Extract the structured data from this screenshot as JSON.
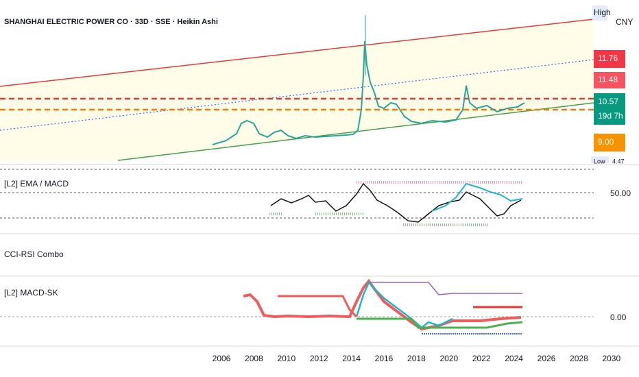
{
  "header": {
    "title": "SHANGHAI ELECTRIC POWER CO · 33D · SSE · Heikin Ashi"
  },
  "price_axis": {
    "high": "High",
    "currency": "CNY",
    "labels": [
      "11.76",
      "11.48",
      "10.57",
      "19d 7h",
      "9.00"
    ],
    "low": "Low",
    "low_value": "4.47"
  },
  "panes": [
    {
      "label": "[L2] EMA / MACD",
      "axis_label": "50.00"
    },
    {
      "label": "CCI-RSI Combo"
    },
    {
      "label": "[L2] MACD-SK",
      "axis_label": "0.00"
    }
  ],
  "time_axis": {
    "labels": [
      "2006",
      "2008",
      "2010",
      "2012",
      "2014",
      "2016",
      "2018",
      "2020",
      "2022",
      "2024",
      "2026",
      "2028",
      "2030"
    ]
  }
}
